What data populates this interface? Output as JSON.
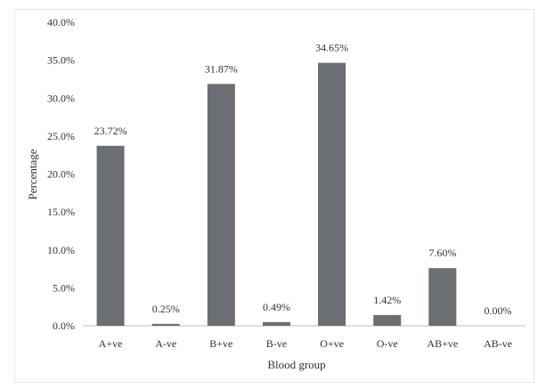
{
  "chart_data": {
    "type": "bar",
    "categories": [
      "A+ve",
      "A-ve",
      "B+ve",
      "B-ve",
      "O+ve",
      "O-ve",
      "AB+ve",
      "AB-ve"
    ],
    "values": [
      23.72,
      0.25,
      31.87,
      0.49,
      34.65,
      1.42,
      7.6,
      0.0
    ],
    "data_labels": [
      "23.72%",
      "0.25%",
      "31.87%",
      "0.49%",
      "34.65%",
      "1.42%",
      "7.60%",
      "0.00%"
    ],
    "y_ticks": [
      0,
      5,
      10,
      15,
      20,
      25,
      30,
      35,
      40
    ],
    "y_tick_labels": [
      "0.0%",
      "5.0%",
      "10.0%",
      "15.0%",
      "20.0%",
      "25.0%",
      "30.0%",
      "35.0%",
      "40.0%"
    ],
    "ylim": [
      0,
      40
    ],
    "xlabel": "Blood group",
    "ylabel": "Percentage",
    "grid": false,
    "colors": {
      "bar": "#6b6e73",
      "axis": "#bfbfbf",
      "text": "#333333"
    }
  }
}
